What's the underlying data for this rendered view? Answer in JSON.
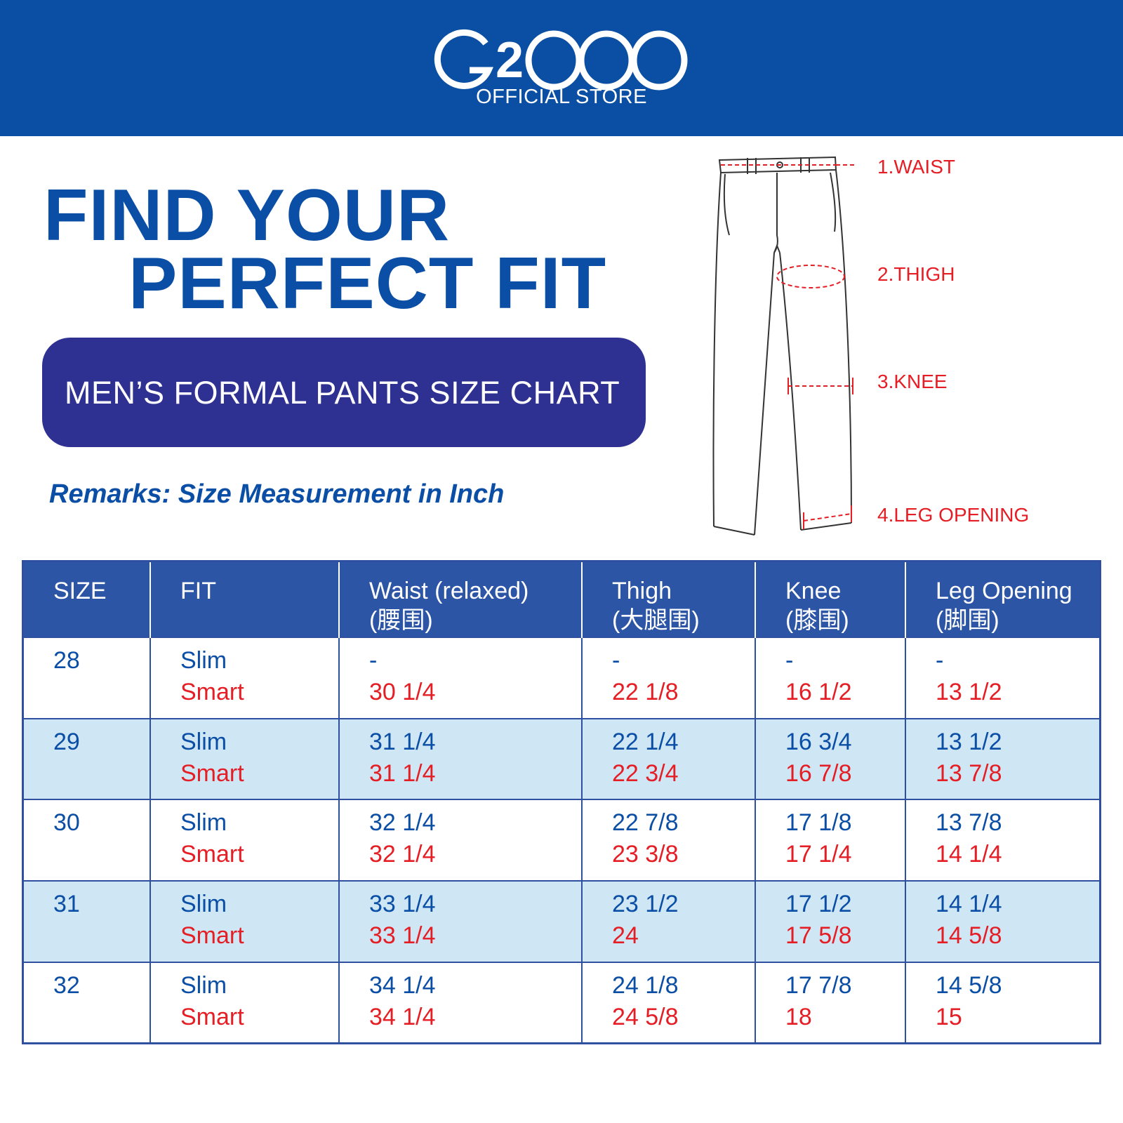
{
  "brand": {
    "logo_text": "G2000",
    "subtitle": "OFFICIAL STORE",
    "header_color": "#0a4fa3"
  },
  "headline": {
    "line1": "FIND YOUR",
    "line2": "PERFECT FIT"
  },
  "banner": {
    "title": "MEN’S FORMAL PANTS SIZE CHART",
    "color": "#2f3192"
  },
  "remarks": "Remarks: Size Measurement in Inch",
  "diagram": {
    "labels": [
      "1.WAIST",
      "2.THIGH",
      "3.KNEE",
      "4.LEG OPENING"
    ],
    "marker_color": "#e51e25"
  },
  "table": {
    "headers": [
      {
        "line1": "SIZE",
        "line2": ""
      },
      {
        "line1": "FIT",
        "line2": ""
      },
      {
        "line1": "Waist (relaxed)",
        "line2": "(腰围)"
      },
      {
        "line1": "Thigh",
        "line2": "(大腿围)"
      },
      {
        "line1": "Knee",
        "line2": "(膝围)"
      },
      {
        "line1": "Leg Opening",
        "line2": "(脚围)"
      }
    ],
    "rows": [
      {
        "size": "28",
        "fit_slim": "Slim",
        "fit_smart": "Smart",
        "slim": [
          "-",
          "-",
          "-",
          "-"
        ],
        "smart": [
          "30 1/4",
          "22 1/8",
          "16 1/2",
          "13 1/2"
        ]
      },
      {
        "size": "29",
        "fit_slim": "Slim",
        "fit_smart": "Smart",
        "slim": [
          "31 1/4",
          "22 1/4",
          "16 3/4",
          "13 1/2"
        ],
        "smart": [
          "31 1/4",
          "22 3/4",
          "16 7/8",
          "13 7/8"
        ]
      },
      {
        "size": "30",
        "fit_slim": "Slim",
        "fit_smart": "Smart",
        "slim": [
          "32 1/4",
          "22 7/8",
          "17 1/8",
          "13 7/8"
        ],
        "smart": [
          "32 1/4",
          "23 3/8",
          "17 1/4",
          "14 1/4"
        ]
      },
      {
        "size": "31",
        "fit_slim": "Slim",
        "fit_smart": "Smart",
        "slim": [
          "33 1/4",
          "23 1/2",
          "17 1/2",
          "14 1/4"
        ],
        "smart": [
          "33 1/4",
          "24",
          "17 5/8",
          "14 5/8"
        ]
      },
      {
        "size": "32",
        "fit_slim": "Slim",
        "fit_smart": "Smart",
        "slim": [
          "34 1/4",
          "24 1/8",
          "17 7/8",
          "14 5/8"
        ],
        "smart": [
          "34 1/4",
          "24 5/8",
          "18",
          "15"
        ]
      }
    ]
  }
}
